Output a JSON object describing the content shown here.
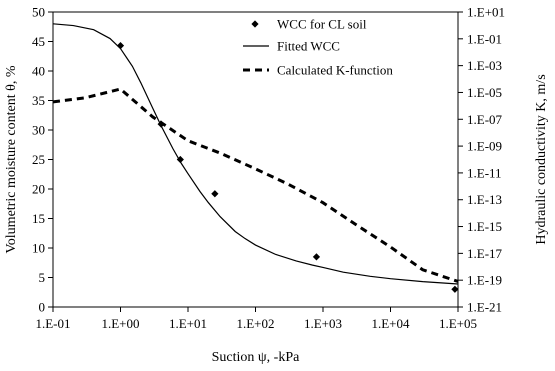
{
  "chart_data": {
    "type": "scatter",
    "x_scale": "log",
    "xlabel": "Suction ψ, -kPa",
    "ylabel_left": "Volumetric moisture content θ, %",
    "ylabel_right": "Hydraulic conductivity K, m/s",
    "xlim": [
      0.1,
      100000
    ],
    "ylim_left": [
      0,
      50
    ],
    "ylim_right_log": [
      1e-21,
      10
    ],
    "x_ticks": [
      {
        "value": 0.1,
        "label": "1.E-01"
      },
      {
        "value": 1,
        "label": "1.E+00"
      },
      {
        "value": 10,
        "label": "1.E+01"
      },
      {
        "value": 100,
        "label": "1.E+02"
      },
      {
        "value": 1000,
        "label": "1.E+03"
      },
      {
        "value": 10000,
        "label": "1.E+04"
      },
      {
        "value": 100000,
        "label": "1.E+05"
      }
    ],
    "y_left_ticks": [
      {
        "value": 0,
        "label": "0"
      },
      {
        "value": 5,
        "label": "5"
      },
      {
        "value": 10,
        "label": "10"
      },
      {
        "value": 15,
        "label": "15"
      },
      {
        "value": 20,
        "label": "20"
      },
      {
        "value": 25,
        "label": "25"
      },
      {
        "value": 30,
        "label": "30"
      },
      {
        "value": 35,
        "label": "35"
      },
      {
        "value": 40,
        "label": "40"
      },
      {
        "value": 45,
        "label": "45"
      },
      {
        "value": 50,
        "label": "50"
      }
    ],
    "y_right_ticks": [
      {
        "value": 10,
        "label": "1.E+01"
      },
      {
        "value": 0.1,
        "label": "1.E-01"
      },
      {
        "value": 0.001,
        "label": "1.E-03"
      },
      {
        "value": 1e-05,
        "label": "1.E-05"
      },
      {
        "value": 1e-07,
        "label": "1.E-07"
      },
      {
        "value": 1e-09,
        "label": "1.E-09"
      },
      {
        "value": 1e-11,
        "label": "1.E-11"
      },
      {
        "value": 1e-13,
        "label": "1.E-13"
      },
      {
        "value": 1e-15,
        "label": "1.E-15"
      },
      {
        "value": 1e-17,
        "label": "1.E-17"
      },
      {
        "value": 1e-19,
        "label": "1.E-19"
      },
      {
        "value": 1e-21,
        "label": "1.E-21"
      }
    ],
    "series": [
      {
        "name": "WCC for CL soil",
        "kind": "markers",
        "marker": "diamond",
        "axis": "left",
        "x": [
          1,
          4,
          7.7,
          25,
          800,
          90000
        ],
        "y": [
          44.3,
          31,
          25,
          19.2,
          8.5,
          3
        ]
      },
      {
        "name": "Fitted WCC",
        "kind": "line",
        "style": "solid",
        "axis": "left",
        "x": [
          0.1,
          0.2,
          0.4,
          0.7,
          1,
          1.5,
          2,
          3,
          4,
          6,
          8,
          10,
          15,
          20,
          30,
          50,
          70,
          100,
          200,
          400,
          700,
          1000,
          2000,
          5000,
          10000,
          30000,
          100000
        ],
        "y": [
          48.0,
          47.7,
          47.0,
          45.5,
          43.8,
          40.8,
          38.0,
          33.7,
          30.7,
          26.8,
          24.3,
          22.6,
          19.6,
          17.7,
          15.3,
          12.8,
          11.6,
          10.5,
          8.9,
          7.8,
          7.1,
          6.7,
          5.9,
          5.2,
          4.8,
          4.3,
          3.9
        ]
      },
      {
        "name": "Calculated K-function",
        "kind": "line",
        "style": "dashed",
        "axis": "right",
        "x": [
          0.1,
          0.3,
          1,
          3,
          10,
          30,
          100,
          300,
          1000,
          3000,
          10000,
          30000,
          100000
        ],
        "y": [
          2e-06,
          4e-06,
          1.8e-05,
          1.5e-07,
          2.5e-09,
          3e-10,
          2e-11,
          1.5e-12,
          6e-14,
          1.5e-15,
          3e-17,
          6e-19,
          8e-20
        ]
      }
    ]
  }
}
